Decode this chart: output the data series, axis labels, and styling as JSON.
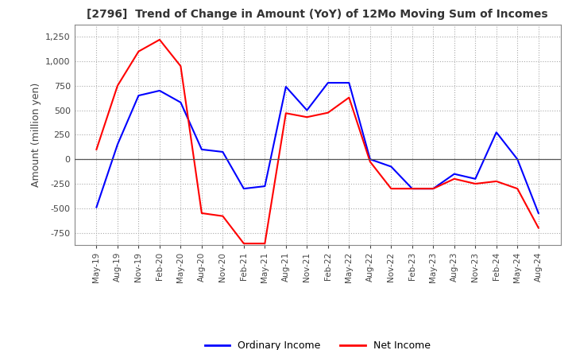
{
  "title": "[2796]  Trend of Change in Amount (YoY) of 12Mo Moving Sum of Incomes",
  "ylabel": "Amount (million yen)",
  "x_labels": [
    "May-19",
    "Aug-19",
    "Nov-19",
    "Feb-20",
    "May-20",
    "Aug-20",
    "Nov-20",
    "Feb-21",
    "May-21",
    "Aug-21",
    "Nov-21",
    "Feb-22",
    "May-22",
    "Aug-22",
    "Nov-22",
    "Feb-23",
    "May-23",
    "Aug-23",
    "Nov-23",
    "Feb-24",
    "May-24",
    "Aug-24"
  ],
  "ordinary_income": [
    -490,
    150,
    650,
    700,
    580,
    100,
    75,
    -300,
    -275,
    740,
    500,
    780,
    780,
    0,
    -75,
    -300,
    -300,
    -150,
    -200,
    275,
    0,
    -550
  ],
  "net_income": [
    100,
    750,
    1100,
    1220,
    950,
    -550,
    -580,
    -860,
    -860,
    470,
    430,
    475,
    630,
    -25,
    -300,
    -300,
    -300,
    -200,
    -250,
    -225,
    -300,
    -700
  ],
  "ordinary_income_color": "#0000ff",
  "net_income_color": "#ff0000",
  "ylim": [
    -875,
    1375
  ],
  "yticks": [
    -750,
    -500,
    -250,
    0,
    250,
    500,
    750,
    1000,
    1250
  ],
  "grid_color": "#aaaaaa",
  "background_color": "#ffffff",
  "line_width": 1.5,
  "title_color": "#333333"
}
